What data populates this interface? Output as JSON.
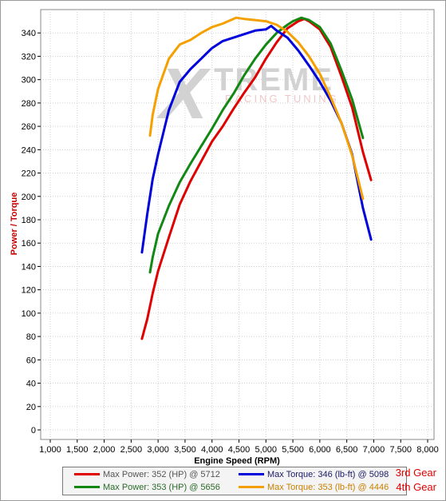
{
  "chart_data": {
    "type": "line",
    "xlabel": "Engine Speed (RPM)",
    "ylabel": "Power / Torque",
    "xlim": [
      1000,
      8000
    ],
    "ylim": [
      0,
      360
    ],
    "x_ticks": [
      "1,000",
      "1,500",
      "2,000",
      "2,500",
      "3,000",
      "3,500",
      "4,000",
      "4,500",
      "5,000",
      "5,500",
      "6,000",
      "6,500",
      "7,000",
      "7,500",
      "8,000"
    ],
    "y_ticks": [
      "0",
      "20",
      "40",
      "60",
      "80",
      "100",
      "120",
      "140",
      "160",
      "180",
      "200",
      "220",
      "240",
      "260",
      "280",
      "300",
      "320",
      "340"
    ],
    "grid": true,
    "watermark": {
      "brand_main": "TREME",
      "brand_sub": "RACING TUNING"
    },
    "series": [
      {
        "name": "3rd Gear Power",
        "color": "#e00000",
        "x": [
          2700,
          2800,
          2900,
          3000,
          3200,
          3400,
          3600,
          3800,
          4000,
          4200,
          4400,
          4600,
          4800,
          5000,
          5200,
          5400,
          5600,
          5712,
          5800,
          6000,
          6200,
          6400,
          6600,
          6800,
          6950
        ],
        "y": [
          78,
          95,
          117,
          136,
          165,
          193,
          213,
          230,
          247,
          260,
          275,
          289,
          302,
          318,
          332,
          344,
          350,
          352,
          350,
          343,
          328,
          303,
          276,
          238,
          214
        ]
      },
      {
        "name": "4th Gear Power",
        "color": "#118811",
        "x": [
          2850,
          2900,
          3000,
          3200,
          3400,
          3600,
          3800,
          4000,
          4200,
          4400,
          4600,
          4800,
          5000,
          5200,
          5400,
          5500,
          5656,
          5800,
          6000,
          6200,
          6400,
          6600,
          6800
        ],
        "y": [
          135,
          148,
          168,
          192,
          212,
          228,
          243,
          258,
          274,
          288,
          304,
          318,
          330,
          340,
          347,
          350,
          353,
          351,
          345,
          331,
          308,
          283,
          250
        ]
      },
      {
        "name": "3rd Gear Torque",
        "color": "#0000dd",
        "x": [
          2700,
          2800,
          2900,
          3000,
          3200,
          3400,
          3600,
          3800,
          4000,
          4200,
          4400,
          4600,
          4800,
          5000,
          5098,
          5200,
          5400,
          5600,
          5800,
          6000,
          6200,
          6400,
          6600,
          6800,
          6950
        ],
        "y": [
          152,
          185,
          215,
          236,
          274,
          298,
          309,
          318,
          327,
          333,
          336,
          339,
          342,
          343,
          346,
          342,
          336,
          325,
          312,
          298,
          282,
          263,
          236,
          190,
          163
        ]
      },
      {
        "name": "4th Gear Torque",
        "color": "#f5a000",
        "x": [
          2850,
          2900,
          3000,
          3200,
          3400,
          3600,
          3800,
          4000,
          4200,
          4446,
          4600,
          4800,
          5000,
          5200,
          5400,
          5600,
          5800,
          6000,
          6200,
          6400,
          6600,
          6800
        ],
        "y": [
          252,
          270,
          292,
          318,
          330,
          334,
          340,
          345,
          348,
          353,
          352,
          351,
          350,
          347,
          341,
          332,
          320,
          305,
          285,
          263,
          235,
          198
        ]
      }
    ]
  },
  "legend": {
    "row1": {
      "power": "Max Power: 352 (HP) @ 5712",
      "torque": "Max Torque: 346 (lb-ft) @ 5098",
      "gear": "3rd Gear"
    },
    "row2": {
      "power": "Max Power: 353 (HP) @ 5656",
      "torque": "Max Torque: 353 (lb-ft) @ 4446",
      "gear": "4th Gear"
    },
    "colors": {
      "power_3rd": "#e00000",
      "torque_3rd": "#0000dd",
      "power_4th": "#118811",
      "torque_4th": "#f5a000",
      "gear_label": "#e00000"
    }
  }
}
